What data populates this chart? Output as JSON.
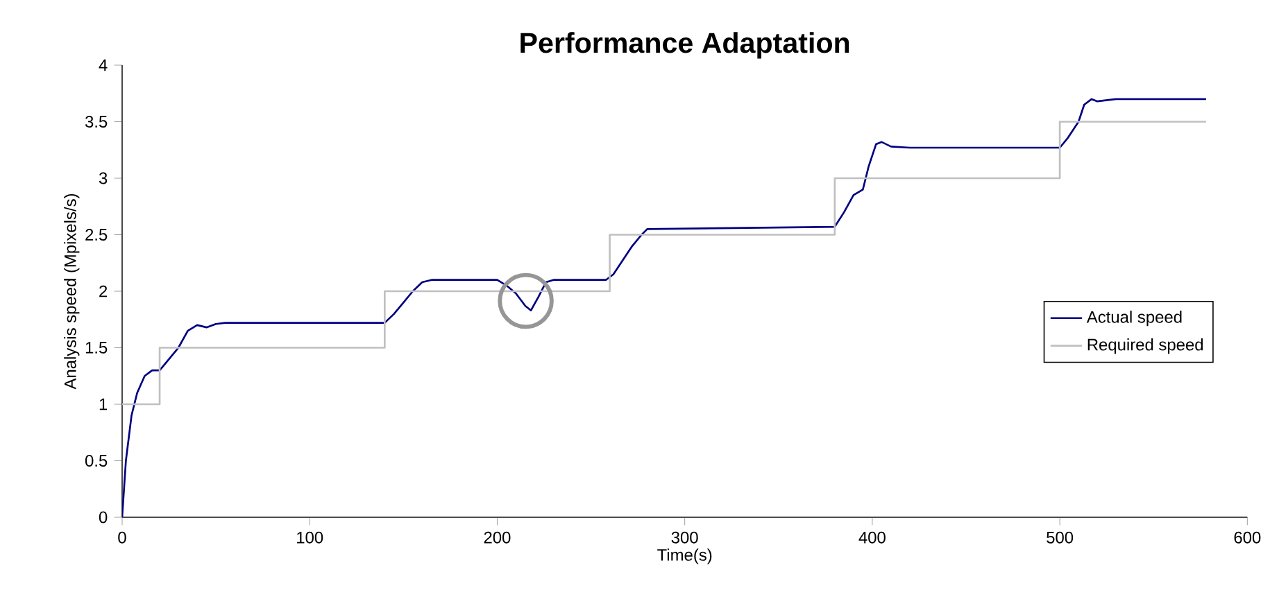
{
  "chart_data": {
    "type": "line",
    "title": "Performance Adaptation",
    "xlabel": "Time(s)",
    "ylabel": "Analysis speed (Mpixels/s)",
    "xlim": [
      0,
      600
    ],
    "xticks": [
      0,
      100,
      200,
      300,
      400,
      500,
      600
    ],
    "ylim": [
      0,
      4
    ],
    "yticks": [
      0,
      0.5,
      1,
      1.5,
      2,
      2.5,
      3,
      3.5,
      4
    ],
    "grid": false,
    "legend": "right",
    "marker": "none",
    "series": [
      {
        "name": "Actual speed",
        "color": "#000080",
        "x": [
          0,
          2,
          5,
          8,
          12,
          16,
          20,
          25,
          30,
          35,
          40,
          45,
          50,
          55,
          140,
          145,
          150,
          155,
          160,
          165,
          200,
          205,
          210,
          215,
          218,
          222,
          226,
          230,
          258,
          262,
          268,
          272,
          277,
          280,
          380,
          385,
          390,
          395,
          398,
          402,
          405,
          410,
          420,
          500,
          504,
          510,
          513,
          517,
          520,
          530,
          578
        ],
        "values": [
          0,
          0.5,
          0.9,
          1.1,
          1.25,
          1.3,
          1.3,
          1.4,
          1.5,
          1.65,
          1.7,
          1.68,
          1.71,
          1.72,
          1.72,
          1.8,
          1.9,
          2.0,
          2.08,
          2.1,
          2.1,
          2.05,
          1.98,
          1.87,
          1.83,
          1.95,
          2.08,
          2.1,
          2.1,
          2.15,
          2.3,
          2.4,
          2.5,
          2.55,
          2.57,
          2.7,
          2.85,
          2.9,
          3.1,
          3.3,
          3.32,
          3.28,
          3.27,
          3.27,
          3.35,
          3.5,
          3.65,
          3.7,
          3.68,
          3.7,
          3.7
        ]
      },
      {
        "name": "Required speed",
        "color": "#c0c0c0",
        "type": "step",
        "x": [
          0,
          20,
          140,
          260,
          380,
          500,
          578
        ],
        "values": [
          1,
          1.5,
          2,
          2.5,
          3,
          3.5,
          3.5
        ]
      }
    ]
  }
}
